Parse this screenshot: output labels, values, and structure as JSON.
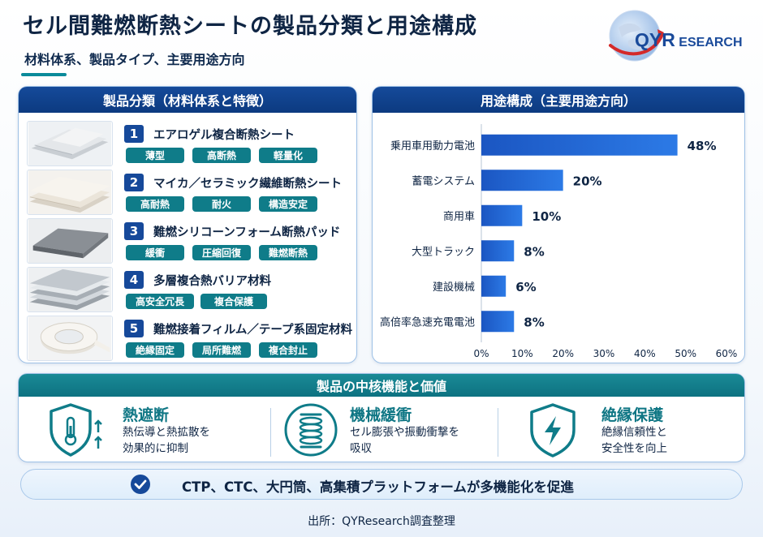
{
  "header": {
    "title": "セル間難燃断熱シートの製品分類と用途構成",
    "subtitle": "材料体系、製品タイプ、主要用途方向"
  },
  "logo": {
    "brand_first": "Q",
    "brand_rest_big": "YR",
    "brand_rest": "ESEARCH"
  },
  "left_panel": {
    "title": "製品分類（材料体系と特徴）",
    "products": [
      {
        "num": "1",
        "name": "エアロゲル複合断熱シート",
        "tags": [
          "薄型",
          "高断熱",
          "軽量化"
        ]
      },
      {
        "num": "2",
        "name": "マイカ／セラミック繊維断熱シート",
        "tags": [
          "高耐熱",
          "耐火",
          "構造安定"
        ]
      },
      {
        "num": "3",
        "name": "難燃シリコーンフォーム断熱パッド",
        "tags": [
          "緩衝",
          "圧縮回復",
          "難燃断熱"
        ]
      },
      {
        "num": "4",
        "name": "多層複合熱バリア材料",
        "tags": [
          "高安全冗長",
          "複合保護"
        ]
      },
      {
        "num": "5",
        "name": "難燃接着フィルム／テープ系固定材料",
        "tags": [
          "絶縁固定",
          "局所難燃",
          "複合封止"
        ]
      }
    ]
  },
  "right_panel": {
    "title": "用途構成（主要用途方向）"
  },
  "chart_data": {
    "type": "bar",
    "orientation": "horizontal",
    "categories": [
      "乗用車用動力電池",
      "蓄電システム",
      "商用車",
      "大型トラック",
      "建設機械",
      "高倍率急速充電電池"
    ],
    "values": [
      48,
      20,
      10,
      8,
      6,
      8
    ],
    "value_labels": [
      "48%",
      "20%",
      "10%",
      "8%",
      "6%",
      "8%"
    ],
    "xlim": [
      0,
      60
    ],
    "xticks": [
      "0%",
      "10%",
      "20%",
      "30%",
      "40%",
      "50%",
      "60%"
    ],
    "grid": false,
    "bar_color": "#1a5fd0"
  },
  "bottom_panel": {
    "title": "製品の中核機能と価値",
    "functions": [
      {
        "title": "熱遮断",
        "desc": [
          "熱伝導と熱拡散を",
          "効果的に抑制"
        ],
        "icon": "thermometer-shield-icon"
      },
      {
        "title": "機械緩衝",
        "desc": [
          "セル膨張や振動衝撃を",
          "吸収"
        ],
        "icon": "spring-icon"
      },
      {
        "title": "絶縁保護",
        "desc": [
          "絶縁信頼性と",
          "安全性を向上"
        ],
        "icon": "lightning-shield-icon"
      }
    ]
  },
  "banner": {
    "text": "CTP、CTC、大円筒、高集積プラットフォームが多機能化を促進"
  },
  "footer": {
    "source": "出所：QYResearch調査整理"
  },
  "colors": {
    "navy": "#0f2544",
    "teal": "#0f7c89",
    "blue": "#16499a"
  }
}
